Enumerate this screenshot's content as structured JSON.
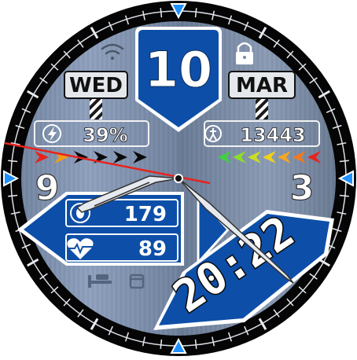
{
  "date": {
    "day_number": "10",
    "weekday": "WED",
    "month": "MAR"
  },
  "battery": {
    "percent": "39%",
    "icon": "lightning-bolt-icon",
    "segments_filled": 2,
    "segments_total": 6
  },
  "steps": {
    "count": "13443",
    "icon": "walking-person-icon",
    "segments_filled": 7,
    "segments_total": 7
  },
  "health": {
    "value_1": "179",
    "value_1_icon": "shoe-sole-icon",
    "heart_rate": "89",
    "heart_rate_icon": "heart-pulse-icon"
  },
  "digital_time": {
    "text": "20:22"
  },
  "dial": {
    "numeral_left": "9",
    "numeral_right": "3"
  },
  "status_icons": {
    "wifi": "wifi-icon",
    "lock": "lock-icon",
    "bed": "bed-icon",
    "calendar": "calendar-icon"
  },
  "colors": {
    "primary_blue": "#0d4fa8",
    "bezel": "#0a0a0a",
    "accent_red": "#e8221c",
    "marker_blue": "#1e90ff"
  }
}
